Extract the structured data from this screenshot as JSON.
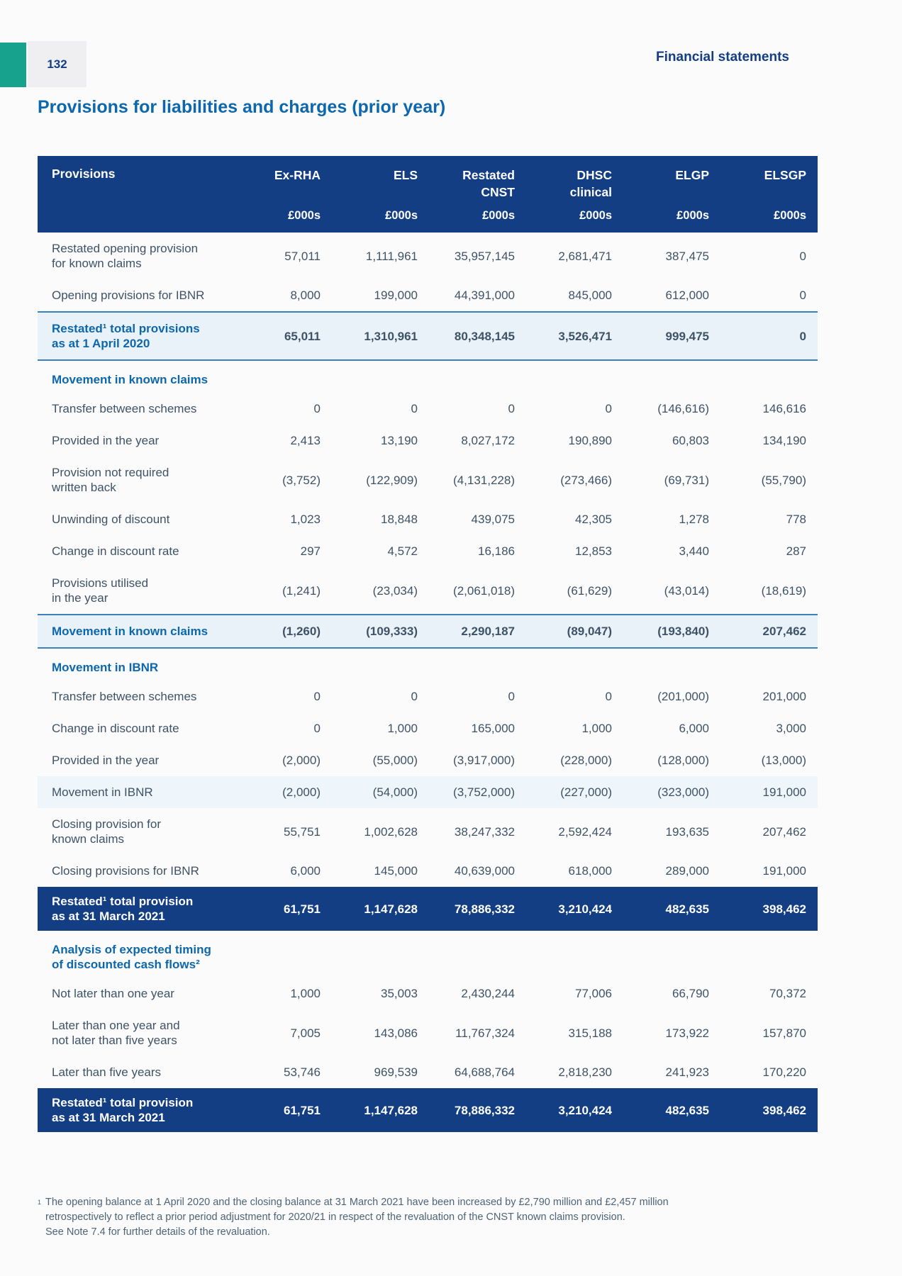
{
  "page": {
    "number": "132",
    "header_right": "Financial statements",
    "title": "Provisions for liabilities and charges (prior year)"
  },
  "colors": {
    "navy": "#133e84",
    "accent_blue": "#0d67ac",
    "teal": "#17a28e",
    "subtotal_bg": "#e9f1f9",
    "tint_bg": "#eef5fb",
    "body_text": "#3e5366"
  },
  "table": {
    "label_header": "Provisions",
    "unit": "£000s",
    "columns": [
      {
        "line1": "Ex-RHA",
        "line2": ""
      },
      {
        "line1": "ELS",
        "line2": ""
      },
      {
        "line1": "Restated",
        "line2": "CNST"
      },
      {
        "line1": "DHSC",
        "line2": "clinical"
      },
      {
        "line1": "ELGP",
        "line2": ""
      },
      {
        "line1": "ELSGP",
        "line2": ""
      }
    ],
    "rows": [
      {
        "style": "normal",
        "label": "Restated opening provision\nfor known claims",
        "values": [
          "57,011",
          "1,111,961",
          "35,957,145",
          "2,681,471",
          "387,475",
          "0"
        ]
      },
      {
        "style": "normal",
        "label": "Opening provisions for IBNR",
        "values": [
          "8,000",
          "199,000",
          "44,391,000",
          "845,000",
          "612,000",
          "0"
        ]
      },
      {
        "style": "subtotal",
        "label": "Restated¹ total provisions\nas at 1 April 2020",
        "values": [
          "65,011",
          "1,310,961",
          "80,348,145",
          "3,526,471",
          "999,475",
          "0"
        ]
      },
      {
        "style": "section",
        "label": "Movement in known claims"
      },
      {
        "style": "normal",
        "label": "Transfer between schemes",
        "values": [
          "0",
          "0",
          "0",
          "0",
          "(146,616)",
          "146,616"
        ]
      },
      {
        "style": "normal",
        "label": "Provided in the year",
        "values": [
          "2,413",
          "13,190",
          "8,027,172",
          "190,890",
          "60,803",
          "134,190"
        ]
      },
      {
        "style": "normal",
        "label": "Provision not required\nwritten back",
        "values": [
          "(3,752)",
          "(122,909)",
          "(4,131,228)",
          "(273,466)",
          "(69,731)",
          "(55,790)"
        ]
      },
      {
        "style": "normal",
        "label": "Unwinding of discount",
        "values": [
          "1,023",
          "18,848",
          "439,075",
          "42,305",
          "1,278",
          "778"
        ]
      },
      {
        "style": "normal",
        "label": "Change in discount rate",
        "values": [
          "297",
          "4,572",
          "16,186",
          "12,853",
          "3,440",
          "287"
        ]
      },
      {
        "style": "normal",
        "label": "Provisions utilised\nin the year",
        "values": [
          "(1,241)",
          "(23,034)",
          "(2,061,018)",
          "(61,629)",
          "(43,014)",
          "(18,619)"
        ]
      },
      {
        "style": "subtotal",
        "label": "Movement in known claims",
        "values": [
          "(1,260)",
          "(109,333)",
          "2,290,187",
          "(89,047)",
          "(193,840)",
          "207,462"
        ]
      },
      {
        "style": "section",
        "label": "Movement in IBNR"
      },
      {
        "style": "normal",
        "label": "Transfer between schemes",
        "values": [
          "0",
          "0",
          "0",
          "0",
          "(201,000)",
          "201,000"
        ]
      },
      {
        "style": "normal",
        "label": "Change in discount rate",
        "values": [
          "0",
          "1,000",
          "165,000",
          "1,000",
          "6,000",
          "3,000"
        ]
      },
      {
        "style": "normal",
        "label": "Provided in the year",
        "values": [
          "(2,000)",
          "(55,000)",
          "(3,917,000)",
          "(228,000)",
          "(128,000)",
          "(13,000)"
        ]
      },
      {
        "style": "tint",
        "label": "Movement in IBNR",
        "values": [
          "(2,000)",
          "(54,000)",
          "(3,752,000)",
          "(227,000)",
          "(323,000)",
          "191,000"
        ]
      },
      {
        "style": "normal",
        "label": "Closing provision for\nknown claims",
        "values": [
          "55,751",
          "1,002,628",
          "38,247,332",
          "2,592,424",
          "193,635",
          "207,462"
        ]
      },
      {
        "style": "normal",
        "label": "Closing provisions for IBNR",
        "values": [
          "6,000",
          "145,000",
          "40,639,000",
          "618,000",
          "289,000",
          "191,000"
        ]
      },
      {
        "style": "total",
        "label": "Restated¹ total provision\nas at 31 March 2021",
        "values": [
          "61,751",
          "1,147,628",
          "78,886,332",
          "3,210,424",
          "482,635",
          "398,462"
        ]
      },
      {
        "style": "section",
        "label": "Analysis of expected timing\nof discounted cash flows²"
      },
      {
        "style": "normal",
        "label": "Not later than one year",
        "values": [
          "1,000",
          "35,003",
          "2,430,244",
          "77,006",
          "66,790",
          "70,372"
        ]
      },
      {
        "style": "normal",
        "label": "Later than one year and\nnot later than five years",
        "values": [
          "7,005",
          "143,086",
          "11,767,324",
          "315,188",
          "173,922",
          "157,870"
        ]
      },
      {
        "style": "normal",
        "label": "Later than five years",
        "values": [
          "53,746",
          "969,539",
          "64,688,764",
          "2,818,230",
          "241,923",
          "170,220"
        ]
      },
      {
        "style": "total",
        "label": "Restated¹ total provision\nas at 31 March 2021",
        "values": [
          "61,751",
          "1,147,628",
          "78,886,332",
          "3,210,424",
          "482,635",
          "398,462"
        ]
      }
    ]
  },
  "footnote": {
    "marker": "1",
    "text": "The opening balance at 1 April 2020 and the closing balance at 31 March 2021 have been increased by £2,790 million and £2,457 million\nretrospectively to reflect a prior period adjustment for 2020/21 in respect of the revaluation of the CNST known claims provision.\nSee Note 7.4 for further details of the revaluation."
  }
}
